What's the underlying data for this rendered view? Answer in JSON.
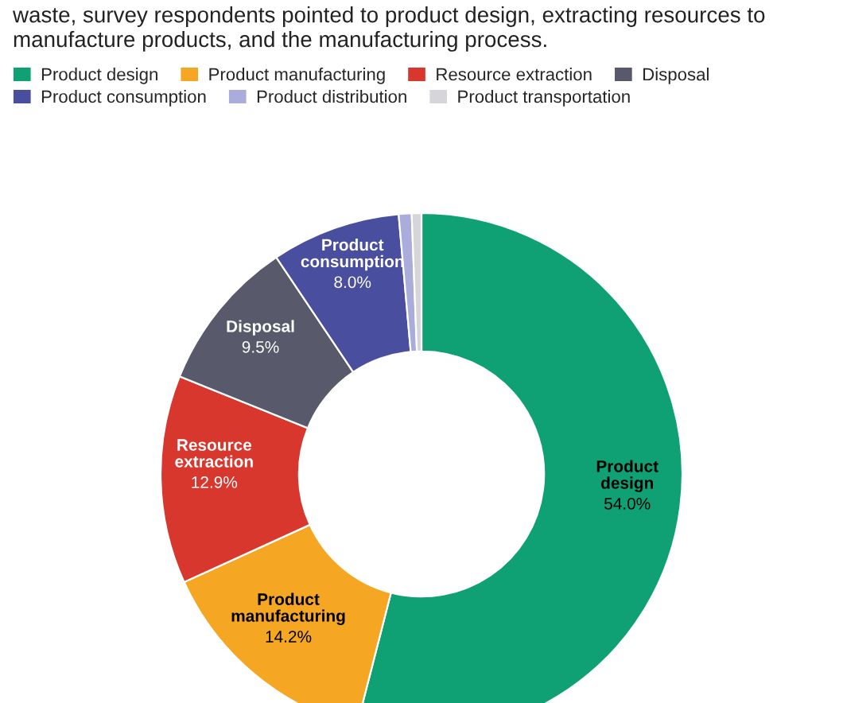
{
  "chart_data": {
    "type": "donut",
    "subtitle": "waste, survey respondents pointed to product design, extracting resources to manufacture products, and the manufacturing process.",
    "categories": [
      "Product design",
      "Product manufacturing",
      "Resource extraction",
      "Disposal",
      "Product consumption",
      "Product distribution",
      "Product transportation"
    ],
    "values": [
      54.0,
      14.2,
      12.9,
      9.5,
      8.0,
      0.8,
      0.6
    ],
    "colors": [
      "#0fa074",
      "#f5a623",
      "#d8372d",
      "#585a6c",
      "#4a4e9e",
      "#aaaddb",
      "#d6d6da"
    ],
    "value_labels": [
      "54.0%",
      "14.2%",
      "12.9%",
      "9.5%",
      "8.0%",
      null,
      null
    ],
    "legend": "top left"
  }
}
